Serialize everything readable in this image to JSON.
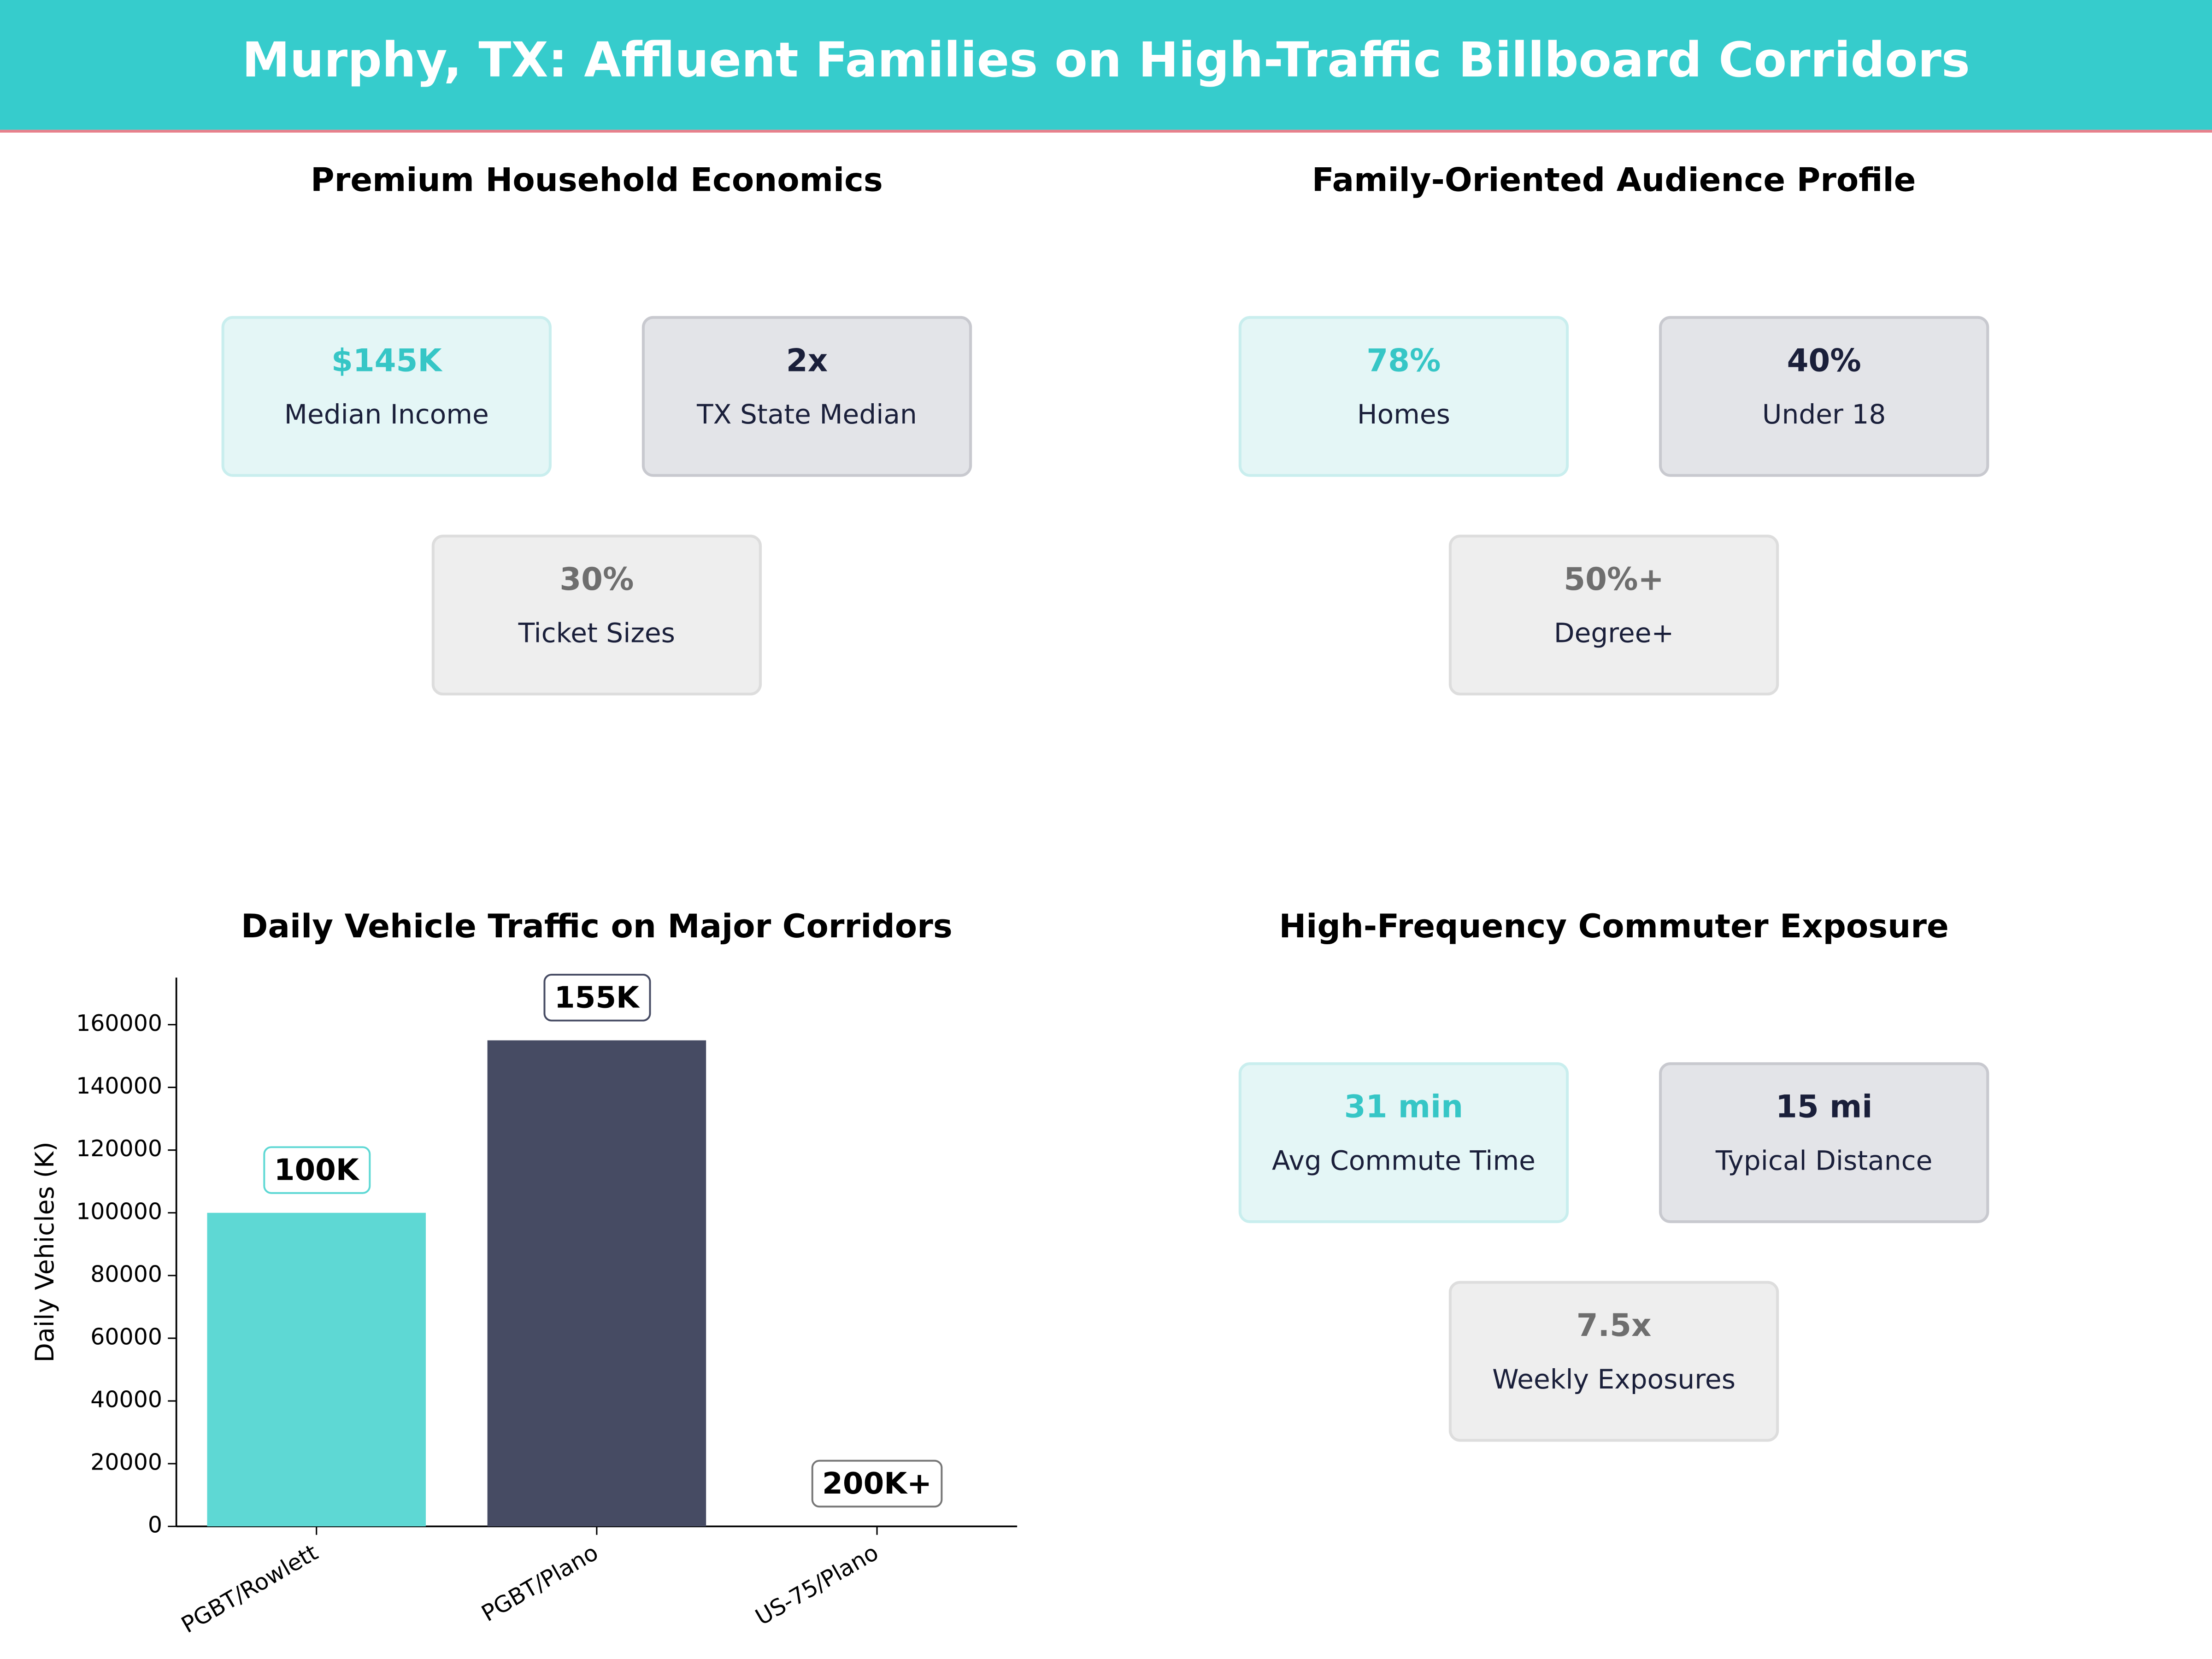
{
  "header": {
    "title": "Murphy, TX: Affluent Families on High-Traffic Billboard Corridors"
  },
  "panels": [
    {
      "title": "Premium Household Economics",
      "cards": [
        {
          "value": "$145K",
          "label": "Median Income"
        },
        {
          "value": "2x",
          "label": "TX State Median"
        },
        {
          "value": "30%",
          "label": "Ticket Sizes"
        }
      ]
    },
    {
      "title": "Family-Oriented Audience Profile",
      "cards": [
        {
          "value": "78%",
          "label": "Homes"
        },
        {
          "value": "40%",
          "label": "Under 18"
        },
        {
          "value": "50%+",
          "label": "Degree+"
        }
      ]
    },
    {
      "title": "High-Frequency Commuter Exposure",
      "cards": [
        {
          "value": "31 min",
          "label": "Avg Commute Time"
        },
        {
          "value": "15 mi",
          "label": "Typical Distance"
        },
        {
          "value": "7.5x",
          "label": "Weekly Exposures"
        }
      ]
    }
  ],
  "chart_data": {
    "type": "bar",
    "title": "Daily Vehicle Traffic on Major Corridors",
    "y_label": "Daily Vehicles (K)",
    "categories": [
      "PGBT/Rowlett",
      "PGBT/Plano",
      "US-75/Plano"
    ],
    "values": [
      100000,
      155000,
      null
    ],
    "value_labels": [
      "100K",
      "155K",
      "200K+"
    ],
    "colors": [
      "#5ed8d4",
      "#464b63"
    ],
    "ylim": [
      0,
      175000
    ],
    "yticks": [
      0,
      20000,
      40000,
      60000,
      80000,
      100000,
      120000,
      140000,
      160000
    ]
  }
}
